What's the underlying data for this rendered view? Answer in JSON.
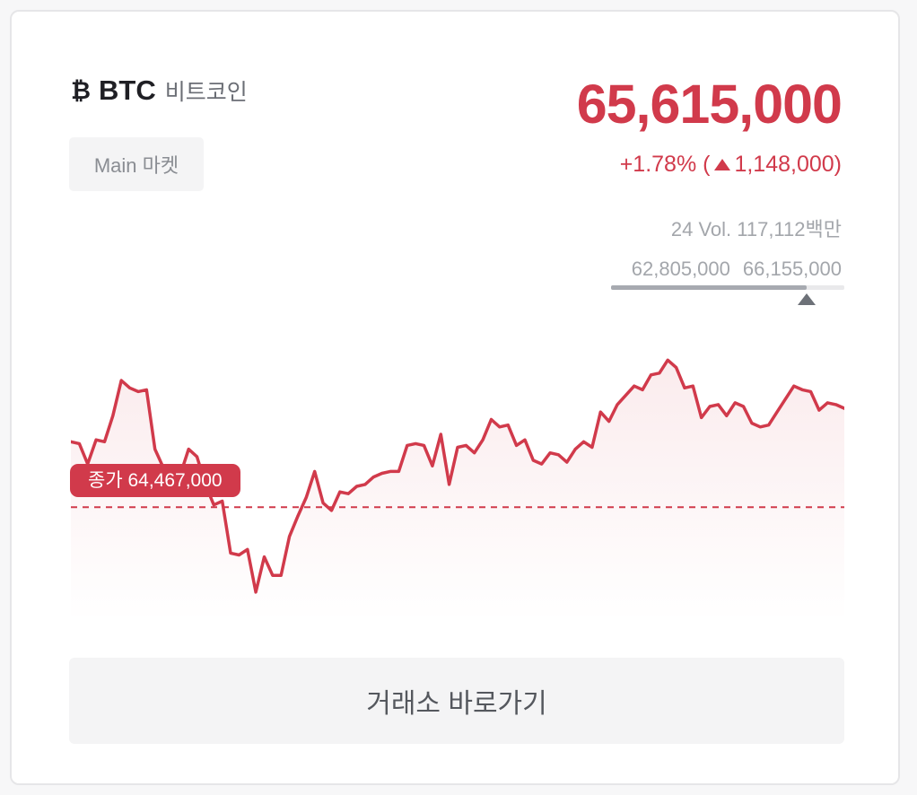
{
  "coin": {
    "icon": "bitcoin-icon",
    "icon_glyph": "₿",
    "ticker": "BTC",
    "name": "비트코인",
    "market_label": "Main 마켓"
  },
  "price": {
    "current": "65,615,000",
    "change_percent": "+1.78% (",
    "change_amount": "1,148,000)",
    "direction": "up",
    "volume": "24 Vol. 117,112백만",
    "low": "62,805,000",
    "high": "66,155,000",
    "range_position": 0.84
  },
  "chart_data": {
    "type": "line",
    "series": [
      {
        "values": [
          64820000,
          64810000,
          64700000,
          64830000,
          64820000,
          64960000,
          65150000,
          65110000,
          65090000,
          65100000,
          64780000,
          64680000,
          64680000,
          64640000,
          64780000,
          64740000,
          64590000,
          64480000,
          64500000,
          64220000,
          64210000,
          64240000,
          64010000,
          64200000,
          64100000,
          64100000,
          64310000,
          64420000,
          64520000,
          64660000,
          64490000,
          64450000,
          64550000,
          64540000,
          64580000,
          64590000,
          64630000,
          64650000,
          64660000,
          64660000,
          64800000,
          64810000,
          64800000,
          64690000,
          64860000,
          64590000,
          64790000,
          64800000,
          64760000,
          64830000,
          64940000,
          64900000,
          64910000,
          64800000,
          64830000,
          64720000,
          64700000,
          64760000,
          64750000,
          64710000,
          64780000,
          64820000,
          64790000,
          64980000,
          64930000,
          65020000,
          65070000,
          65120000,
          65100000,
          65180000,
          65190000,
          65260000,
          65220000,
          65110000,
          65120000,
          64950000,
          65010000,
          65020000,
          64960000,
          65030000,
          65010000,
          64920000,
          64900000,
          64910000,
          64980000,
          65050000,
          65120000,
          65100000,
          65090000,
          64990000,
          65030000,
          65020000,
          65000000
        ]
      }
    ],
    "reference": {
      "label": "종가 64,467,000",
      "value": 64467000
    },
    "ylim": [
      63850000,
      65300000
    ],
    "line_color": "#d13a4b"
  },
  "cta_label": "거래소 바로가기",
  "colors": {
    "up": "#d13a4b",
    "muted": "#a3a6ab"
  }
}
